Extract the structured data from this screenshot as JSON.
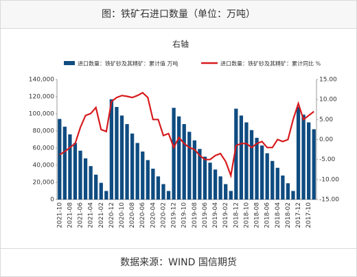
{
  "header": {
    "title": "图：铁矿石进口数量（单位：万吨）"
  },
  "footer": {
    "source": "数据来源：WIND 国信期货"
  },
  "chart_data": {
    "type": "combo",
    "annotation": "右轴",
    "categories": [
      "2021-10",
      null,
      "2021-08",
      null,
      "2021-06",
      null,
      "2021-04",
      null,
      "2021-02",
      null,
      "2020-12",
      null,
      "2020-10",
      null,
      "2020-08",
      null,
      "2020-06",
      null,
      "2020-04",
      null,
      "2020-02",
      null,
      "2019-12",
      null,
      "2019-10",
      null,
      "2019-08",
      null,
      "2019-06",
      null,
      "2019-04",
      null,
      "2019-02",
      null,
      "2018-12",
      null,
      "2018-10",
      null,
      "2018-08",
      null,
      "2018-06",
      null,
      "2018-04",
      null,
      "2018-02",
      null,
      "2017-12",
      null,
      "2017-10",
      null
    ],
    "series": [
      {
        "name": "进口数量：铁矿砂及其精矿：累计值 万吨",
        "kind": "bar",
        "color": "#0f4c81",
        "values": [
          94000,
          85000,
          76000,
          66000,
          57000,
          48000,
          39000,
          29000,
          19500,
          10000,
          117000,
          108000,
          98000,
          88000,
          77000,
          66000,
          56000,
          46000,
          36000,
          27000,
          18000,
          10000,
          107000,
          97000,
          88000,
          79000,
          69000,
          59000,
          50000,
          43000,
          35000,
          27000,
          18000,
          10000,
          106000,
          98000,
          90000,
          81000,
          72000,
          63000,
          54000,
          45000,
          37000,
          28000,
          19000,
          10000,
          108000,
          99000,
          90000,
          82000
        ]
      },
      {
        "name": "进口数量：铁矿砂及其精矿：累计同比 %",
        "kind": "line",
        "axis": "y2",
        "color": "#d7191c",
        "values": [
          -3.8,
          -3,
          -2,
          -1,
          3,
          6,
          6.5,
          8,
          2.5,
          2,
          9.5,
          10.5,
          11,
          10.8,
          10.5,
          11,
          11.7,
          10.5,
          5,
          5,
          1,
          1.5,
          -2,
          0.5,
          -1,
          -2,
          -2.5,
          -4,
          -5,
          -5,
          -4,
          -3.5,
          -5.5,
          -9,
          -1.5,
          -1,
          -1,
          -2,
          -1,
          -0.5,
          -2,
          -2,
          0,
          -0.5,
          0,
          5,
          9,
          5,
          6,
          7
        ]
      }
    ],
    "ylim": [
      0,
      140000
    ],
    "yticks": [
      0,
      {
        "value": 20000,
        "label": "20,000"
      },
      {
        "value": 40000,
        "label": "40,000"
      },
      {
        "value": 60000,
        "label": "60,000"
      },
      {
        "value": 80000,
        "label": "80,000"
      },
      {
        "value": 100000,
        "label": "100,000"
      },
      {
        "value": 120000,
        "label": "120,000"
      },
      {
        "value": 140000,
        "label": "140,000"
      }
    ],
    "y2lim": [
      -15,
      15
    ],
    "y2ticks": [
      {
        "value": -15,
        "label": "-15.00"
      },
      {
        "value": -10,
        "label": "-10.00"
      },
      {
        "value": -5,
        "label": "-5.00"
      },
      {
        "value": 0,
        "label": "0.00"
      },
      {
        "value": 5,
        "label": "5.00"
      },
      {
        "value": 10,
        "label": "10.00"
      },
      {
        "value": 15,
        "label": "15.00"
      }
    ],
    "legend": "top"
  }
}
